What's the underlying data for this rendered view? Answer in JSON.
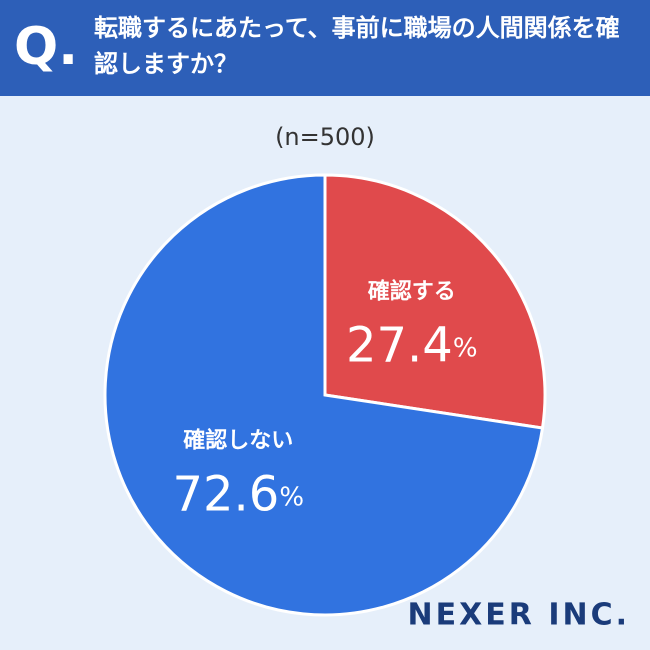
{
  "chart_data": {
    "type": "pie",
    "question_mark": "Q.",
    "title": "転職するにあたって、事前に職場の人間関係を確認しますか？",
    "subtitle": "(n=500)",
    "categories": [
      "確認する",
      "確認しない"
    ],
    "values": [
      27.4,
      72.6
    ],
    "value_labels": [
      "27.4%",
      "72.6%"
    ],
    "colors": [
      "#e04a4c",
      "#3173e0"
    ],
    "brand": "NEXER INC."
  }
}
